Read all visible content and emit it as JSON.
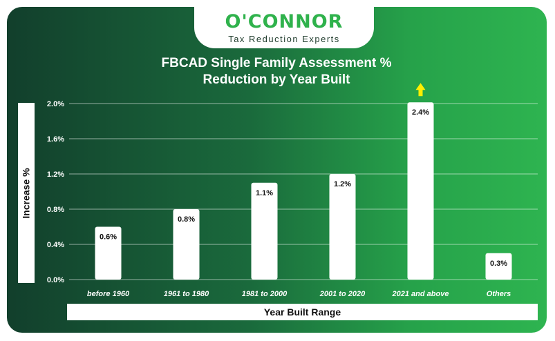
{
  "logo": {
    "name": "O'CONNOR",
    "tagline": "Tax Reduction Experts"
  },
  "colors": {
    "bar": "#ffffff",
    "arrow": "#ffee00",
    "text": "#ffffff",
    "grid": "#ffffff"
  },
  "chart_data": {
    "type": "bar",
    "title_line1": "FBCAD Single Family Assessment %",
    "title_line2": "Reduction by Year Built",
    "xlabel": "Year Built Range",
    "ylabel": "Increase %",
    "categories": [
      "before 1960",
      "1961 to 1980",
      "1981 to 2000",
      "2001 to 2020",
      "2021 and above",
      "Others"
    ],
    "values": [
      0.6,
      0.8,
      1.1,
      1.2,
      2.4,
      0.3
    ],
    "data_labels": [
      "0.6%",
      "0.8%",
      "1.1%",
      "1.2%",
      "2.4%",
      "0.3%"
    ],
    "y_ticks": [
      0.0,
      0.4,
      0.8,
      1.2,
      1.6,
      2.0
    ],
    "y_tick_labels": [
      "0.0%",
      "0.4%",
      "0.8%",
      "1.2%",
      "1.6%",
      "2.0%"
    ],
    "ylim": [
      0,
      2.0
    ],
    "grid": true,
    "legend": "none",
    "overflow_marker": "up-arrow-icon on 2021 and above"
  }
}
